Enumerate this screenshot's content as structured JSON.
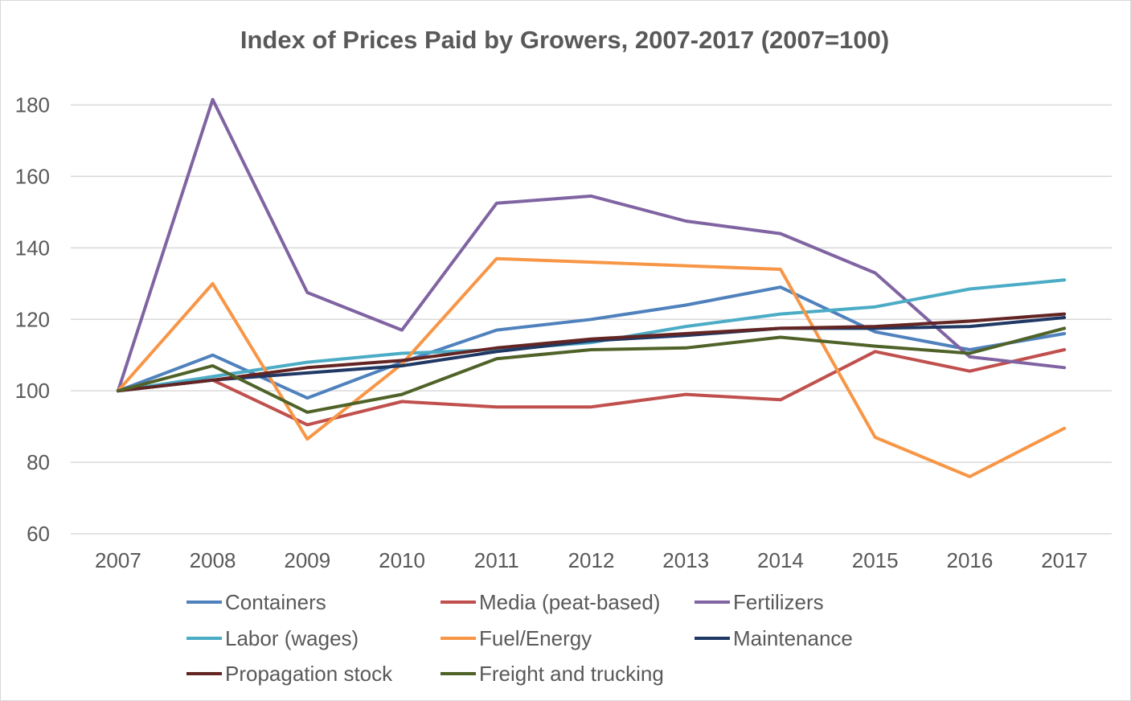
{
  "chart_data": {
    "type": "line",
    "title": "Index of Prices Paid by Growers, 2007-2017 (2007=100)",
    "xlabel": "",
    "ylabel": "",
    "categories": [
      "2007",
      "2008",
      "2009",
      "2010",
      "2011",
      "2012",
      "2013",
      "2014",
      "2015",
      "2016",
      "2017"
    ],
    "yticks": [
      "60",
      "80",
      "100",
      "120",
      "140",
      "160",
      "180"
    ],
    "ylim": [
      60,
      180
    ],
    "grid": "horizontal",
    "legend_position": "bottom",
    "series": [
      {
        "name": "Containers",
        "color": "#4f81bd",
        "values": [
          100,
          110,
          98,
          108,
          117,
          120,
          124,
          129,
          116.5,
          111.5,
          116
        ]
      },
      {
        "name": "Media (peat-based)",
        "color": "#c0504d",
        "values": [
          100,
          103,
          90.5,
          97,
          95.5,
          95.5,
          99,
          97.5,
          111,
          105.5,
          111.5
        ]
      },
      {
        "name": "Fertilizers",
        "color": "#8064a2",
        "values": [
          100,
          181.5,
          127.5,
          117,
          152.5,
          154.5,
          147.5,
          144,
          133,
          109.5,
          106.5
        ]
      },
      {
        "name": "Labor (wages)",
        "color": "#4bacc6",
        "values": [
          100,
          104,
          108,
          110.5,
          111.5,
          113.5,
          118,
          121.5,
          123.5,
          128.5,
          131
        ]
      },
      {
        "name": "Fuel/Energy",
        "color": "#f79646",
        "values": [
          100,
          130,
          86.5,
          107.5,
          137,
          136,
          135,
          134,
          87,
          76,
          89.5
        ]
      },
      {
        "name": "Maintenance",
        "color": "#1f3864",
        "values": [
          100,
          103,
          105,
          107,
          111,
          114,
          115.5,
          117.5,
          117.5,
          118,
          120.5
        ]
      },
      {
        "name": "Propagation stock",
        "color": "#632523",
        "values": [
          100,
          103,
          106.5,
          108.5,
          112,
          114.5,
          116,
          117.5,
          118,
          119.5,
          121.5
        ]
      },
      {
        "name": "Freight and trucking",
        "color": "#4f6228",
        "values": [
          100,
          107,
          94,
          99,
          109,
          111.5,
          112,
          115,
          112.5,
          110.5,
          117.5
        ]
      }
    ]
  }
}
